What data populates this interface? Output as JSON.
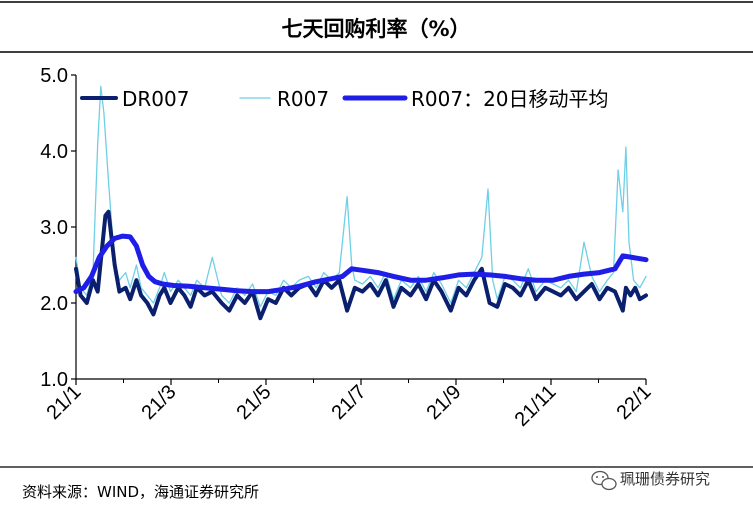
{
  "chart_data": {
    "type": "line",
    "title": "七天回购利率（%）",
    "xlabel": "",
    "ylabel": "",
    "ylim": [
      1.0,
      5.0
    ],
    "yticks": [
      "1.0",
      "2.0",
      "3.0",
      "4.0",
      "5.0"
    ],
    "xticks": [
      "21/1",
      "21/3",
      "21/5",
      "21/7",
      "21/9",
      "21/11",
      "22/1"
    ],
    "grid": false,
    "legend": "top",
    "x_range": [
      "2021-01-01",
      "2022-01-04"
    ],
    "series": [
      {
        "name": "DR007",
        "color": "#0a1f6e",
        "points": [
          [
            "2021-01-01",
            2.45
          ],
          [
            "2021-01-04",
            2.1
          ],
          [
            "2021-01-08",
            2.0
          ],
          [
            "2021-01-12",
            2.3
          ],
          [
            "2021-01-15",
            2.15
          ],
          [
            "2021-01-18",
            2.75
          ],
          [
            "2021-01-20",
            3.15
          ],
          [
            "2021-01-22",
            3.2
          ],
          [
            "2021-01-26",
            2.5
          ],
          [
            "2021-01-29",
            2.15
          ],
          [
            "2021-02-02",
            2.2
          ],
          [
            "2021-02-05",
            2.05
          ],
          [
            "2021-02-09",
            2.3
          ],
          [
            "2021-02-12",
            2.1
          ],
          [
            "2021-02-16",
            2.0
          ],
          [
            "2021-02-20",
            1.85
          ],
          [
            "2021-02-24",
            2.1
          ],
          [
            "2021-02-27",
            2.2
          ],
          [
            "2021-03-03",
            2.0
          ],
          [
            "2021-03-08",
            2.2
          ],
          [
            "2021-03-12",
            2.1
          ],
          [
            "2021-03-16",
            1.95
          ],
          [
            "2021-03-20",
            2.2
          ],
          [
            "2021-03-25",
            2.1
          ],
          [
            "2021-03-30",
            2.15
          ],
          [
            "2021-04-05",
            2.0
          ],
          [
            "2021-04-10",
            1.9
          ],
          [
            "2021-04-15",
            2.1
          ],
          [
            "2021-04-20",
            2.0
          ],
          [
            "2021-04-25",
            2.15
          ],
          [
            "2021-04-30",
            1.8
          ],
          [
            "2021-05-05",
            2.05
          ],
          [
            "2021-05-10",
            2.0
          ],
          [
            "2021-05-15",
            2.2
          ],
          [
            "2021-05-20",
            2.1
          ],
          [
            "2021-05-25",
            2.2
          ],
          [
            "2021-05-31",
            2.25
          ],
          [
            "2021-06-05",
            2.1
          ],
          [
            "2021-06-10",
            2.3
          ],
          [
            "2021-06-15",
            2.2
          ],
          [
            "2021-06-20",
            2.3
          ],
          [
            "2021-06-25",
            1.9
          ],
          [
            "2021-06-30",
            2.2
          ],
          [
            "2021-07-05",
            2.15
          ],
          [
            "2021-07-10",
            2.25
          ],
          [
            "2021-07-15",
            2.1
          ],
          [
            "2021-07-20",
            2.3
          ],
          [
            "2021-07-25",
            1.95
          ],
          [
            "2021-07-30",
            2.2
          ],
          [
            "2021-08-05",
            2.1
          ],
          [
            "2021-08-10",
            2.25
          ],
          [
            "2021-08-15",
            2.05
          ],
          [
            "2021-08-20",
            2.3
          ],
          [
            "2021-08-25",
            2.15
          ],
          [
            "2021-08-31",
            1.9
          ],
          [
            "2021-09-05",
            2.2
          ],
          [
            "2021-09-10",
            2.1
          ],
          [
            "2021-09-15",
            2.3
          ],
          [
            "2021-09-20",
            2.45
          ],
          [
            "2021-09-25",
            2.0
          ],
          [
            "2021-09-30",
            1.95
          ],
          [
            "2021-10-05",
            2.25
          ],
          [
            "2021-10-10",
            2.2
          ],
          [
            "2021-10-15",
            2.1
          ],
          [
            "2021-10-20",
            2.3
          ],
          [
            "2021-10-25",
            2.05
          ],
          [
            "2021-10-31",
            2.2
          ],
          [
            "2021-11-05",
            2.15
          ],
          [
            "2021-11-10",
            2.1
          ],
          [
            "2021-11-15",
            2.2
          ],
          [
            "2021-11-20",
            2.05
          ],
          [
            "2021-11-25",
            2.15
          ],
          [
            "2021-11-30",
            2.25
          ],
          [
            "2021-12-05",
            2.05
          ],
          [
            "2021-12-10",
            2.2
          ],
          [
            "2021-12-15",
            2.15
          ],
          [
            "2021-12-20",
            1.9
          ],
          [
            "2021-12-22",
            2.2
          ],
          [
            "2021-12-25",
            2.1
          ],
          [
            "2021-12-28",
            2.2
          ],
          [
            "2021-12-31",
            2.05
          ],
          [
            "2022-01-04",
            2.1
          ]
        ]
      },
      {
        "name": "R007",
        "color": "#6ed0e6",
        "points": [
          [
            "2021-01-01",
            2.6
          ],
          [
            "2021-01-04",
            2.2
          ],
          [
            "2021-01-08",
            2.1
          ],
          [
            "2021-01-12",
            2.4
          ],
          [
            "2021-01-15",
            4.1
          ],
          [
            "2021-01-17",
            4.85
          ],
          [
            "2021-01-19",
            4.5
          ],
          [
            "2021-01-22",
            3.6
          ],
          [
            "2021-01-26",
            2.5
          ],
          [
            "2021-01-29",
            2.3
          ],
          [
            "2021-02-02",
            2.4
          ],
          [
            "2021-02-05",
            2.2
          ],
          [
            "2021-02-09",
            2.5
          ],
          [
            "2021-02-12",
            2.2
          ],
          [
            "2021-02-16",
            2.1
          ],
          [
            "2021-02-20",
            2.0
          ],
          [
            "2021-02-24",
            2.2
          ],
          [
            "2021-02-27",
            2.4
          ],
          [
            "2021-03-03",
            2.15
          ],
          [
            "2021-03-08",
            2.3
          ],
          [
            "2021-03-12",
            2.2
          ],
          [
            "2021-03-16",
            2.1
          ],
          [
            "2021-03-20",
            2.3
          ],
          [
            "2021-03-25",
            2.2
          ],
          [
            "2021-03-30",
            2.6
          ],
          [
            "2021-04-05",
            2.1
          ],
          [
            "2021-04-10",
            2.0
          ],
          [
            "2021-04-15",
            2.2
          ],
          [
            "2021-04-20",
            2.1
          ],
          [
            "2021-04-25",
            2.25
          ],
          [
            "2021-04-30",
            1.95
          ],
          [
            "2021-05-05",
            2.15
          ],
          [
            "2021-05-10",
            2.1
          ],
          [
            "2021-05-15",
            2.3
          ],
          [
            "2021-05-20",
            2.2
          ],
          [
            "2021-05-25",
            2.3
          ],
          [
            "2021-05-31",
            2.35
          ],
          [
            "2021-06-05",
            2.2
          ],
          [
            "2021-06-10",
            2.4
          ],
          [
            "2021-06-15",
            2.3
          ],
          [
            "2021-06-20",
            2.4
          ],
          [
            "2021-06-25",
            3.4
          ],
          [
            "2021-06-28",
            2.5
          ],
          [
            "2021-06-30",
            2.3
          ],
          [
            "2021-07-05",
            2.25
          ],
          [
            "2021-07-10",
            2.35
          ],
          [
            "2021-07-15",
            2.2
          ],
          [
            "2021-07-20",
            2.4
          ],
          [
            "2021-07-25",
            2.05
          ],
          [
            "2021-07-30",
            2.3
          ],
          [
            "2021-08-05",
            2.2
          ],
          [
            "2021-08-10",
            2.35
          ],
          [
            "2021-08-15",
            2.15
          ],
          [
            "2021-08-20",
            2.4
          ],
          [
            "2021-08-25",
            2.25
          ],
          [
            "2021-08-31",
            2.0
          ],
          [
            "2021-09-05",
            2.3
          ],
          [
            "2021-09-10",
            2.2
          ],
          [
            "2021-09-15",
            2.4
          ],
          [
            "2021-09-20",
            2.6
          ],
          [
            "2021-09-24",
            3.5
          ],
          [
            "2021-09-27",
            2.3
          ],
          [
            "2021-09-30",
            2.05
          ],
          [
            "2021-10-05",
            2.35
          ],
          [
            "2021-10-10",
            2.3
          ],
          [
            "2021-10-15",
            2.2
          ],
          [
            "2021-10-20",
            2.45
          ],
          [
            "2021-10-25",
            2.15
          ],
          [
            "2021-10-31",
            2.3
          ],
          [
            "2021-11-05",
            2.25
          ],
          [
            "2021-11-10",
            2.2
          ],
          [
            "2021-11-15",
            2.3
          ],
          [
            "2021-11-20",
            2.15
          ],
          [
            "2021-11-25",
            2.8
          ],
          [
            "2021-11-30",
            2.35
          ],
          [
            "2021-12-05",
            2.15
          ],
          [
            "2021-12-10",
            2.3
          ],
          [
            "2021-12-14",
            2.4
          ],
          [
            "2021-12-17",
            3.75
          ],
          [
            "2021-12-20",
            3.2
          ],
          [
            "2021-12-22",
            4.05
          ],
          [
            "2021-12-24",
            2.8
          ],
          [
            "2021-12-27",
            2.3
          ],
          [
            "2021-12-31",
            2.2
          ],
          [
            "2022-01-04",
            2.35
          ]
        ]
      },
      {
        "name": "R007：20日移动平均",
        "color": "#1e1ee6",
        "points": [
          [
            "2021-01-01",
            2.15
          ],
          [
            "2021-01-06",
            2.2
          ],
          [
            "2021-01-11",
            2.35
          ],
          [
            "2021-01-16",
            2.6
          ],
          [
            "2021-01-21",
            2.75
          ],
          [
            "2021-01-26",
            2.85
          ],
          [
            "2021-01-31",
            2.88
          ],
          [
            "2021-02-05",
            2.87
          ],
          [
            "2021-02-09",
            2.75
          ],
          [
            "2021-02-13",
            2.5
          ],
          [
            "2021-02-17",
            2.35
          ],
          [
            "2021-02-21",
            2.28
          ],
          [
            "2021-02-26",
            2.25
          ],
          [
            "2021-03-05",
            2.23
          ],
          [
            "2021-03-15",
            2.22
          ],
          [
            "2021-03-25",
            2.2
          ],
          [
            "2021-04-05",
            2.18
          ],
          [
            "2021-04-15",
            2.16
          ],
          [
            "2021-04-25",
            2.15
          ],
          [
            "2021-05-05",
            2.15
          ],
          [
            "2021-05-15",
            2.18
          ],
          [
            "2021-05-25",
            2.22
          ],
          [
            "2021-06-05",
            2.28
          ],
          [
            "2021-06-15",
            2.32
          ],
          [
            "2021-06-22",
            2.35
          ],
          [
            "2021-06-28",
            2.45
          ],
          [
            "2021-07-05",
            2.43
          ],
          [
            "2021-07-15",
            2.4
          ],
          [
            "2021-07-25",
            2.35
          ],
          [
            "2021-08-05",
            2.3
          ],
          [
            "2021-08-15",
            2.3
          ],
          [
            "2021-08-25",
            2.33
          ],
          [
            "2021-09-05",
            2.37
          ],
          [
            "2021-09-15",
            2.38
          ],
          [
            "2021-09-25",
            2.37
          ],
          [
            "2021-10-05",
            2.35
          ],
          [
            "2021-10-15",
            2.32
          ],
          [
            "2021-10-25",
            2.3
          ],
          [
            "2021-11-05",
            2.3
          ],
          [
            "2021-11-15",
            2.35
          ],
          [
            "2021-11-25",
            2.38
          ],
          [
            "2021-12-05",
            2.4
          ],
          [
            "2021-12-15",
            2.45
          ],
          [
            "2021-12-20",
            2.62
          ],
          [
            "2021-12-26",
            2.6
          ],
          [
            "2022-01-04",
            2.57
          ]
        ]
      }
    ]
  },
  "footer": {
    "source": "资料来源：WIND，海通证券研究所",
    "watermark": "珮珊债券研究"
  }
}
